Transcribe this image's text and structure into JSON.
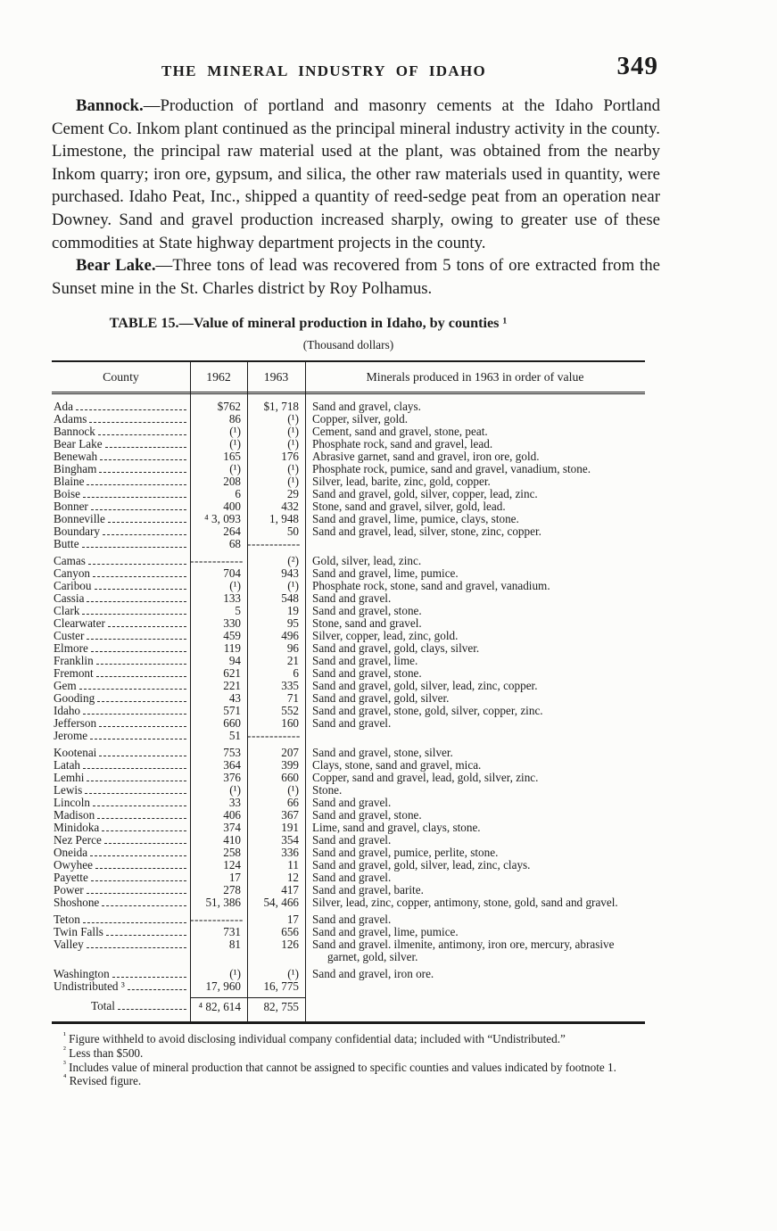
{
  "header": {
    "title": "THE MINERAL INDUSTRY OF IDAHO",
    "page_number": "349"
  },
  "paragraphs": [
    {
      "lead": "Bannock.",
      "body": "—Production of portland and masonry cements at the Idaho Portland Cement Co. Inkom plant continued as the principal mineral industry activity in the county.  Limestone, the principal raw material used at the plant, was obtained from the nearby Inkom quarry; iron ore, gypsum, and silica, the other raw materials used in quantity, were purchased.  Idaho Peat, Inc., shipped a quantity of reed-sedge peat from an operation near Downey.  Sand and gravel production increased sharply, owing to greater use of these commodities at State highway department projects in the county."
    },
    {
      "lead": "Bear Lake.",
      "body": "—Three tons of lead was recovered from 5 tons of ore extracted from the Sunset mine in the St. Charles district by Roy Polhamus."
    }
  ],
  "table": {
    "title": "TABLE 15.—Value of mineral production in Idaho, by counties ¹",
    "subtitle": "(Thousand dollars)",
    "columns": [
      "County",
      "1962",
      "1963",
      "Minerals produced in 1963 in order of value"
    ],
    "rows": [
      {
        "county": "Ada",
        "v1962": "$762",
        "v1963": "$1, 718",
        "minerals": "Sand and gravel, clays."
      },
      {
        "county": "Adams",
        "v1962": "86",
        "v1963": "(¹)",
        "minerals": "Copper, silver, gold."
      },
      {
        "county": "Bannock",
        "v1962": "(¹)",
        "v1963": "(¹)",
        "minerals": "Cement, sand and gravel, stone, peat."
      },
      {
        "county": "Bear Lake",
        "v1962": "(¹)",
        "v1963": "(¹)",
        "minerals": "Phosphate rock, sand and gravel, lead."
      },
      {
        "county": "Benewah",
        "v1962": "165",
        "v1963": "176",
        "minerals": "Abrasive garnet, sand and gravel, iron ore, gold."
      },
      {
        "county": "Bingham",
        "v1962": "(¹)",
        "v1963": "(¹)",
        "minerals": "Phosphate rock, pumice, sand and gravel, vanadium, stone."
      },
      {
        "county": "Blaine",
        "v1962": "208",
        "v1963": "(¹)",
        "minerals": "Silver, lead, barite, zinc, gold, copper."
      },
      {
        "county": "Boise",
        "v1962": "6",
        "v1963": "29",
        "minerals": "Sand and gravel, gold, silver, copper, lead, zinc."
      },
      {
        "county": "Bonner",
        "v1962": "400",
        "v1963": "432",
        "minerals": "Stone, sand and gravel, silver, gold, lead."
      },
      {
        "county": "Bonneville",
        "v1962": "⁴ 3, 093",
        "v1963": "1, 948",
        "minerals": "Sand and gravel, lime, pumice, clays, stone."
      },
      {
        "county": "Boundary",
        "v1962": "264",
        "v1963": "50",
        "minerals": "Sand and gravel, lead, silver, stone, zinc, copper."
      },
      {
        "county": "Butte",
        "v1962": "68",
        "v1963": "------------",
        "minerals": ""
      },
      {
        "county": "Camas",
        "v1962": "------------",
        "v1963": "(²)",
        "minerals": "Gold, silver, lead, zinc.",
        "gap": true
      },
      {
        "county": "Canyon",
        "v1962": "704",
        "v1963": "943",
        "minerals": "Sand and gravel, lime, pumice."
      },
      {
        "county": "Caribou",
        "v1962": "(¹)",
        "v1963": "(¹)",
        "minerals": "Phosphate rock, stone, sand and gravel, vanadium."
      },
      {
        "county": "Cassia",
        "v1962": "133",
        "v1963": "548",
        "minerals": "Sand and gravel."
      },
      {
        "county": "Clark",
        "v1962": "5",
        "v1963": "19",
        "minerals": "Sand and gravel, stone."
      },
      {
        "county": "Clearwater",
        "v1962": "330",
        "v1963": "95",
        "minerals": "Stone, sand and gravel."
      },
      {
        "county": "Custer",
        "v1962": "459",
        "v1963": "496",
        "minerals": "Silver, copper, lead, zinc, gold."
      },
      {
        "county": "Elmore",
        "v1962": "119",
        "v1963": "96",
        "minerals": "Sand and gravel, gold, clays, silver."
      },
      {
        "county": "Franklin",
        "v1962": "94",
        "v1963": "21",
        "minerals": "Sand and gravel, lime."
      },
      {
        "county": "Fremont",
        "v1962": "621",
        "v1963": "6",
        "minerals": "Sand and gravel, stone."
      },
      {
        "county": "Gem",
        "v1962": "221",
        "v1963": "335",
        "minerals": "Sand and gravel, gold, silver, lead, zinc, copper."
      },
      {
        "county": "Gooding",
        "v1962": "43",
        "v1963": "71",
        "minerals": "Sand and gravel, gold, silver."
      },
      {
        "county": "Idaho",
        "v1962": "571",
        "v1963": "552",
        "minerals": "Sand and gravel, stone, gold, silver, copper, zinc."
      },
      {
        "county": "Jefferson",
        "v1962": "660",
        "v1963": "160",
        "minerals": "Sand and gravel."
      },
      {
        "county": "Jerome",
        "v1962": "51",
        "v1963": "------------",
        "minerals": ""
      },
      {
        "county": "Kootenai",
        "v1962": "753",
        "v1963": "207",
        "minerals": "Sand and gravel, stone, silver.",
        "gap": true
      },
      {
        "county": "Latah",
        "v1962": "364",
        "v1963": "399",
        "minerals": "Clays, stone, sand and gravel, mica."
      },
      {
        "county": "Lemhi",
        "v1962": "376",
        "v1963": "660",
        "minerals": "Copper, sand and gravel, lead, gold, silver, zinc."
      },
      {
        "county": "Lewis",
        "v1962": "(¹)",
        "v1963": "(¹)",
        "minerals": "Stone."
      },
      {
        "county": "Lincoln",
        "v1962": "33",
        "v1963": "66",
        "minerals": "Sand and gravel."
      },
      {
        "county": "Madison",
        "v1962": "406",
        "v1963": "367",
        "minerals": "Sand and gravel, stone."
      },
      {
        "county": "Minidoka",
        "v1962": "374",
        "v1963": "191",
        "minerals": "Lime, sand and gravel, clays, stone."
      },
      {
        "county": "Nez Perce",
        "v1962": "410",
        "v1963": "354",
        "minerals": "Sand and gravel."
      },
      {
        "county": "Oneida",
        "v1962": "258",
        "v1963": "336",
        "minerals": "Sand and gravel, pumice, perlite, stone."
      },
      {
        "county": "Owyhee",
        "v1962": "124",
        "v1963": "11",
        "minerals": "Sand and gravel, gold, silver, lead, zinc, clays."
      },
      {
        "county": "Payette",
        "v1962": "17",
        "v1963": "12",
        "minerals": "Sand and gravel."
      },
      {
        "county": "Power",
        "v1962": "278",
        "v1963": "417",
        "minerals": "Sand and gravel, barite."
      },
      {
        "county": "Shoshone",
        "v1962": "51, 386",
        "v1963": "54, 466",
        "minerals": "Silver, lead, zinc, copper, antimony, stone, gold, sand and gravel."
      },
      {
        "county": "Teton",
        "v1962": "------------",
        "v1963": "17",
        "minerals": "Sand and gravel.",
        "gap": true
      },
      {
        "county": "Twin Falls",
        "v1962": "731",
        "v1963": "656",
        "minerals": "Sand and gravel, lime, pumice."
      },
      {
        "county": "Valley",
        "v1962": "81",
        "v1963": "126",
        "minerals": "Sand and gravel. ilmenite, antimony, iron ore, mercury, abrasive garnet, gold, silver."
      },
      {
        "county": "Washington",
        "v1962": "(¹)",
        "v1963": "(¹)",
        "minerals": "Sand and gravel, iron ore.",
        "gap": true
      },
      {
        "county": "Undistributed ³",
        "v1962": "17, 960",
        "v1963": "16, 775",
        "minerals": ""
      },
      {
        "county": "Total",
        "v1962": "⁴ 82, 614",
        "v1963": "82, 755",
        "minerals": "",
        "total": true
      }
    ]
  },
  "footnotes": [
    {
      "marker": "¹",
      "text": "Figure withheld to avoid disclosing individual company confidential data; included with “Undistributed.”"
    },
    {
      "marker": "²",
      "text": "Less than $500."
    },
    {
      "marker": "³",
      "text": "Includes value of mineral production that cannot be assigned to specific counties and values indicated by footnote 1."
    },
    {
      "marker": "⁴",
      "text": "Revised figure."
    }
  ]
}
